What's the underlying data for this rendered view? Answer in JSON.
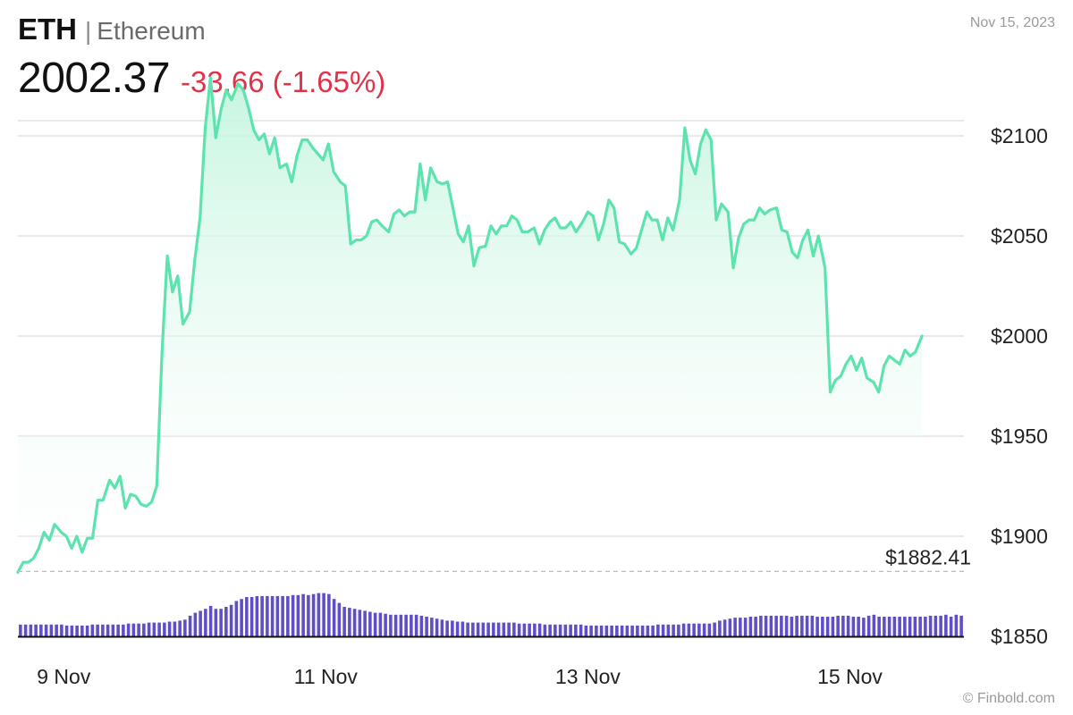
{
  "header": {
    "ticker": "ETH",
    "separator": "|",
    "name": "Ethereum",
    "price": "2002.37",
    "change": "-33.66 (-1.65%)"
  },
  "date": "Nov 15, 2023",
  "watermark": "© Finbold.com",
  "colors": {
    "line": "#5de3ad",
    "fill_top": "#c4f5df",
    "volume": "#5f4fc7",
    "negative": "#e0334a",
    "grid": "#e2e2e2"
  },
  "chart_data": {
    "type": "line",
    "y_axis": {
      "ticks": [
        1850,
        1900,
        1950,
        2000,
        2050,
        2100
      ],
      "tick_labels": [
        "$1850",
        "$1900",
        "$1950",
        "$2000",
        "$2050",
        "$2100"
      ],
      "range": [
        1850,
        2150
      ],
      "position": "right"
    },
    "x_axis": {
      "range": [
        8.65,
        15.87
      ],
      "ticks": [
        9,
        11,
        13,
        15
      ],
      "tick_labels": [
        "9 Nov",
        "11 Nov",
        "13 Nov",
        "15 Nov"
      ]
    },
    "reference_line": {
      "value": 1882.41,
      "label": "$1882.41"
    },
    "grid": true,
    "series": [
      {
        "values": [
          [
            8.65,
            1882
          ],
          [
            8.69,
            1887
          ],
          [
            8.73,
            1887
          ],
          [
            8.77,
            1889
          ],
          [
            8.81,
            1894
          ],
          [
            8.85,
            1902
          ],
          [
            8.89,
            1898
          ],
          [
            8.93,
            1906
          ],
          [
            8.98,
            1902
          ],
          [
            9.02,
            1900
          ],
          [
            9.06,
            1894
          ],
          [
            9.1,
            1900
          ],
          [
            9.14,
            1892
          ],
          [
            9.18,
            1899
          ],
          [
            9.22,
            1899
          ],
          [
            9.26,
            1918
          ],
          [
            9.3,
            1918
          ],
          [
            9.35,
            1928
          ],
          [
            9.39,
            1924
          ],
          [
            9.43,
            1930
          ],
          [
            9.47,
            1914
          ],
          [
            9.51,
            1921
          ],
          [
            9.55,
            1920
          ],
          [
            9.59,
            1916
          ],
          [
            9.63,
            1915
          ],
          [
            9.67,
            1917
          ],
          [
            9.71,
            1925
          ],
          [
            9.75,
            1992
          ],
          [
            9.79,
            2040
          ],
          [
            9.83,
            2022
          ],
          [
            9.87,
            2030
          ],
          [
            9.91,
            2006
          ],
          [
            9.96,
            2012
          ],
          [
            10.0,
            2038
          ],
          [
            10.04,
            2059
          ],
          [
            10.08,
            2104
          ],
          [
            10.12,
            2129
          ],
          [
            10.16,
            2099
          ],
          [
            10.2,
            2113
          ],
          [
            10.24,
            2123
          ],
          [
            10.28,
            2118
          ],
          [
            10.33,
            2126
          ],
          [
            10.37,
            2123
          ],
          [
            10.41,
            2114
          ],
          [
            10.45,
            2103
          ],
          [
            10.49,
            2098
          ],
          [
            10.53,
            2101
          ],
          [
            10.57,
            2091
          ],
          [
            10.61,
            2099
          ],
          [
            10.65,
            2084
          ],
          [
            10.7,
            2086
          ],
          [
            10.74,
            2077
          ],
          [
            10.78,
            2090
          ],
          [
            10.82,
            2098
          ],
          [
            10.86,
            2098
          ],
          [
            10.9,
            2094
          ],
          [
            10.94,
            2091
          ],
          [
            10.98,
            2088
          ],
          [
            11.02,
            2096
          ],
          [
            11.06,
            2082
          ],
          [
            11.11,
            2077
          ],
          [
            11.15,
            2075
          ],
          [
            11.19,
            2046
          ],
          [
            11.23,
            2048
          ],
          [
            11.27,
            2048
          ],
          [
            11.31,
            2050
          ],
          [
            11.35,
            2057
          ],
          [
            11.39,
            2058
          ],
          [
            11.43,
            2055
          ],
          [
            11.48,
            2052
          ],
          [
            11.52,
            2061
          ],
          [
            11.56,
            2063
          ],
          [
            11.6,
            2060
          ],
          [
            11.64,
            2062
          ],
          [
            11.68,
            2062
          ],
          [
            11.72,
            2086
          ],
          [
            11.76,
            2068
          ],
          [
            11.8,
            2084
          ],
          [
            11.85,
            2077
          ],
          [
            11.89,
            2076
          ],
          [
            11.93,
            2077
          ],
          [
            11.97,
            2064
          ],
          [
            12.01,
            2051
          ],
          [
            12.05,
            2047
          ],
          [
            12.09,
            2055
          ],
          [
            12.13,
            2035
          ],
          [
            12.17,
            2044
          ],
          [
            12.22,
            2045
          ],
          [
            12.26,
            2055
          ],
          [
            12.3,
            2051
          ],
          [
            12.34,
            2055
          ],
          [
            12.38,
            2055
          ],
          [
            12.42,
            2060
          ],
          [
            12.46,
            2058
          ],
          [
            12.5,
            2052
          ],
          [
            12.54,
            2052
          ],
          [
            12.59,
            2054
          ],
          [
            12.63,
            2046
          ],
          [
            12.67,
            2053
          ],
          [
            12.71,
            2057
          ],
          [
            12.75,
            2059
          ],
          [
            12.79,
            2054
          ],
          [
            12.83,
            2054
          ],
          [
            12.87,
            2057
          ],
          [
            12.91,
            2052
          ],
          [
            12.96,
            2057
          ],
          [
            13.0,
            2062
          ],
          [
            13.04,
            2060
          ],
          [
            13.08,
            2048
          ],
          [
            13.12,
            2056
          ],
          [
            13.16,
            2068
          ],
          [
            13.2,
            2064
          ],
          [
            13.24,
            2047
          ],
          [
            13.28,
            2046
          ],
          [
            13.33,
            2041
          ],
          [
            13.37,
            2044
          ],
          [
            13.41,
            2053
          ],
          [
            13.45,
            2062
          ],
          [
            13.49,
            2058
          ],
          [
            13.53,
            2058
          ],
          [
            13.57,
            2048
          ],
          [
            13.61,
            2059
          ],
          [
            13.65,
            2053
          ],
          [
            13.7,
            2068
          ],
          [
            13.74,
            2104
          ],
          [
            13.78,
            2088
          ],
          [
            13.82,
            2081
          ],
          [
            13.86,
            2096
          ],
          [
            13.9,
            2103
          ],
          [
            13.94,
            2098
          ],
          [
            13.98,
            2058
          ],
          [
            14.02,
            2066
          ],
          [
            14.07,
            2062
          ],
          [
            14.11,
            2034
          ],
          [
            14.15,
            2049
          ],
          [
            14.19,
            2056
          ],
          [
            14.23,
            2058
          ],
          [
            14.27,
            2058
          ],
          [
            14.31,
            2064
          ],
          [
            14.35,
            2061
          ],
          [
            14.39,
            2063
          ],
          [
            14.44,
            2064
          ],
          [
            14.48,
            2053
          ],
          [
            14.52,
            2052
          ],
          [
            14.56,
            2042
          ],
          [
            14.6,
            2039
          ],
          [
            14.64,
            2048
          ],
          [
            14.68,
            2053
          ],
          [
            14.72,
            2040
          ],
          [
            14.76,
            2050
          ],
          [
            14.81,
            2034
          ],
          [
            14.85,
            1972
          ],
          [
            14.89,
            1978
          ],
          [
            14.93,
            1980
          ],
          [
            14.97,
            1986
          ],
          [
            15.01,
            1990
          ],
          [
            15.05,
            1983
          ],
          [
            15.09,
            1989
          ],
          [
            15.13,
            1979
          ],
          [
            15.18,
            1977
          ],
          [
            15.22,
            1972
          ],
          [
            15.26,
            1985
          ],
          [
            15.3,
            1990
          ],
          [
            15.34,
            1988
          ],
          [
            15.38,
            1986
          ],
          [
            15.42,
            1993
          ],
          [
            15.46,
            1990
          ],
          [
            15.5,
            1992
          ],
          [
            15.55,
            2000
          ]
        ]
      },
      {
        "type": "bar",
        "values": [
          12,
          12,
          12,
          12,
          12,
          12,
          12,
          12,
          12,
          11,
          11,
          11,
          11,
          11,
          12,
          12,
          12,
          12,
          12,
          12,
          12,
          13,
          13,
          13,
          13,
          14,
          14,
          14,
          14,
          15,
          15,
          16,
          17,
          21,
          24,
          26,
          28,
          31,
          28,
          28,
          30,
          32,
          36,
          38,
          40,
          40,
          41,
          41,
          41,
          41,
          41,
          41,
          41,
          42,
          42,
          43,
          42,
          43,
          44,
          44,
          43,
          38,
          34,
          30,
          29,
          28,
          27,
          26,
          25,
          24,
          24,
          23,
          22,
          22,
          22,
          22,
          22,
          22,
          21,
          20,
          19,
          18,
          17,
          16,
          16,
          15,
          15,
          14,
          14,
          14,
          14,
          14,
          14,
          14,
          14,
          14,
          14,
          13,
          13,
          13,
          13,
          13,
          12,
          12,
          12,
          12,
          12,
          12,
          12,
          12,
          11,
          11,
          11,
          11,
          11,
          11,
          11,
          11,
          11,
          11,
          11,
          11,
          11,
          11,
          12,
          12,
          12,
          12,
          12,
          13,
          13,
          13,
          13,
          13,
          13,
          14,
          16,
          17,
          18,
          19,
          19,
          19,
          20,
          20,
          21,
          21,
          21,
          21,
          21,
          21,
          20,
          21,
          21,
          21,
          21,
          20,
          20,
          20,
          20,
          21,
          21,
          21,
          20,
          20,
          19,
          21,
          22,
          20,
          20,
          20,
          20,
          20,
          20,
          20,
          20,
          20,
          20,
          21,
          21,
          21,
          22,
          20,
          22,
          21
        ]
      }
    ]
  }
}
